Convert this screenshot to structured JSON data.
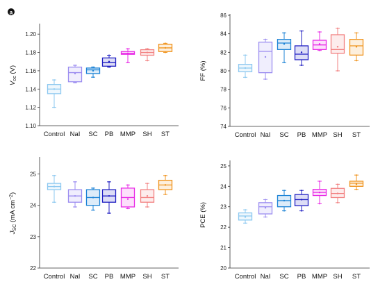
{
  "panel_label": "a",
  "chart_data": [
    {
      "type": "box",
      "ylabel": "V_oc (V)",
      "ylabel_parts": [
        "V",
        "oc",
        " (V)"
      ],
      "ylim": [
        1.1,
        1.21
      ],
      "yticks": [
        1.1,
        1.12,
        1.14,
        1.16,
        1.18,
        1.2
      ],
      "ytick_labels": [
        "1.10",
        "1.12",
        "1.14",
        "1.16",
        "1.18",
        "1.20"
      ],
      "categories": [
        "Control",
        "NaI",
        "SC",
        "PB",
        "MMP",
        "SH",
        "ST"
      ],
      "series": [
        {
          "whisker_low": 1.12,
          "q1": 1.135,
          "median": 1.14,
          "q3": 1.145,
          "whisker_high": 1.15,
          "mean": 1.14
        },
        {
          "whisker_low": 1.147,
          "q1": 1.148,
          "median": 1.158,
          "q3": 1.164,
          "whisker_high": 1.166,
          "mean": 1.157
        },
        {
          "whisker_low": 1.153,
          "q1": 1.157,
          "median": 1.161,
          "q3": 1.163,
          "whisker_high": 1.164,
          "mean": 1.16
        },
        {
          "whisker_low": 1.164,
          "q1": 1.165,
          "median": 1.169,
          "q3": 1.174,
          "whisker_high": 1.177,
          "mean": 1.17
        },
        {
          "whisker_low": 1.169,
          "q1": 1.178,
          "median": 1.179,
          "q3": 1.181,
          "whisker_high": 1.184,
          "mean": 1.179
        },
        {
          "whisker_low": 1.171,
          "q1": 1.177,
          "median": 1.18,
          "q3": 1.183,
          "whisker_high": 1.184,
          "mean": 1.18
        },
        {
          "whisker_low": 1.18,
          "q1": 1.181,
          "median": 1.185,
          "q3": 1.189,
          "whisker_high": 1.19,
          "mean": 1.185
        }
      ]
    },
    {
      "type": "box",
      "ylabel": "FF (%)",
      "ylabel_parts": [
        "FF (%)",
        "",
        ""
      ],
      "ylim": [
        74,
        86
      ],
      "yticks": [
        74,
        76,
        78,
        80,
        82,
        84,
        86
      ],
      "ytick_labels": [
        "74",
        "76",
        "78",
        "80",
        "82",
        "84",
        "86"
      ],
      "categories": [
        "Control",
        "NaI",
        "SC",
        "PB",
        "MMP",
        "SH",
        "ST"
      ],
      "series": [
        {
          "whisker_low": 79.3,
          "q1": 79.9,
          "median": 80.3,
          "q3": 80.7,
          "whisker_high": 81.7,
          "mean": 80.3
        },
        {
          "whisker_low": 79.1,
          "q1": 79.8,
          "median": 82.1,
          "q3": 83.1,
          "whisker_high": 83.4,
          "mean": 81.5
        },
        {
          "whisker_low": 80.9,
          "q1": 82.3,
          "median": 83.0,
          "q3": 83.4,
          "whisker_high": 84.1,
          "mean": 82.9
        },
        {
          "whisker_low": 80.6,
          "q1": 81.2,
          "median": 81.8,
          "q3": 82.7,
          "whisker_high": 84.3,
          "mean": 82.0
        },
        {
          "whisker_low": 82.2,
          "q1": 82.3,
          "median": 82.8,
          "q3": 83.3,
          "whisker_high": 84.2,
          "mean": 82.9
        },
        {
          "whisker_low": 80.0,
          "q1": 81.9,
          "median": 82.3,
          "q3": 83.9,
          "whisker_high": 84.6,
          "mean": 82.6
        },
        {
          "whisker_low": 81.1,
          "q1": 81.7,
          "median": 82.7,
          "q3": 83.4,
          "whisker_high": 84.1,
          "mean": 82.6
        }
      ]
    },
    {
      "type": "box",
      "ylabel": "J_SC (mA cm^-2)",
      "ylabel_parts": [
        "J",
        "SC",
        " (mA cm"
      ],
      "ylim": [
        22,
        25.5
      ],
      "yticks": [
        22,
        23,
        24,
        25
      ],
      "ytick_labels": [
        "22",
        "23",
        "24",
        "25"
      ],
      "categories": [
        "Control",
        "NaI",
        "SC",
        "PB",
        "MMP",
        "SH",
        "ST"
      ],
      "series": [
        {
          "whisker_low": 24.1,
          "q1": 24.5,
          "median": 24.6,
          "q3": 24.7,
          "whisker_high": 24.95,
          "mean": 24.6
        },
        {
          "whisker_low": 23.95,
          "q1": 24.1,
          "median": 24.3,
          "q3": 24.5,
          "whisker_high": 24.75,
          "mean": 24.3
        },
        {
          "whisker_low": 23.85,
          "q1": 24.0,
          "median": 24.25,
          "q3": 24.5,
          "whisker_high": 24.55,
          "mean": 24.25
        },
        {
          "whisker_low": 23.75,
          "q1": 24.1,
          "median": 24.3,
          "q3": 24.5,
          "whisker_high": 24.75,
          "mean": 24.3
        },
        {
          "whisker_low": 23.9,
          "q1": 23.95,
          "median": 24.25,
          "q3": 24.55,
          "whisker_high": 24.65,
          "mean": 24.2
        },
        {
          "whisker_low": 23.95,
          "q1": 24.1,
          "median": 24.25,
          "q3": 24.5,
          "whisker_high": 24.7,
          "mean": 24.3
        },
        {
          "whisker_low": 24.35,
          "q1": 24.5,
          "median": 24.65,
          "q3": 24.8,
          "whisker_high": 24.95,
          "mean": 24.65
        }
      ]
    },
    {
      "type": "box",
      "ylabel": "PCE (%)",
      "ylabel_parts": [
        "PCE (%)",
        "",
        ""
      ],
      "ylim": [
        20,
        25.2
      ],
      "yticks": [
        20,
        21,
        22,
        23,
        24,
        25
      ],
      "ytick_labels": [
        "20",
        "21",
        "22",
        "23",
        "24",
        "25"
      ],
      "categories": [
        "Control",
        "NaI",
        "SC",
        "PB",
        "MMP",
        "SH",
        "ST"
      ],
      "series": [
        {
          "whisker_low": 22.2,
          "q1": 22.35,
          "median": 22.55,
          "q3": 22.7,
          "whisker_high": 22.85,
          "mean": 22.5
        },
        {
          "whisker_low": 22.5,
          "q1": 22.65,
          "median": 23.0,
          "q3": 23.2,
          "whisker_high": 23.35,
          "mean": 22.95
        },
        {
          "whisker_low": 22.8,
          "q1": 23.0,
          "median": 23.3,
          "q3": 23.55,
          "whisker_high": 23.8,
          "mean": 23.3
        },
        {
          "whisker_low": 22.8,
          "q1": 23.05,
          "median": 23.35,
          "q3": 23.6,
          "whisker_high": 23.8,
          "mean": 23.35
        },
        {
          "whisker_low": 23.15,
          "q1": 23.55,
          "median": 23.7,
          "q3": 23.85,
          "whisker_high": 24.25,
          "mean": 23.7
        },
        {
          "whisker_low": 23.2,
          "q1": 23.45,
          "median": 23.65,
          "q3": 23.9,
          "whisker_high": 24.1,
          "mean": 23.65
        },
        {
          "whisker_low": 23.85,
          "q1": 24.0,
          "median": 24.15,
          "q3": 24.25,
          "whisker_high": 24.55,
          "mean": 24.1
        }
      ]
    }
  ],
  "colors": [
    "#8cc8f0",
    "#9b8cf0",
    "#1c83d6",
    "#1f1ec2",
    "#e829e6",
    "#f28080",
    "#f0931c"
  ]
}
